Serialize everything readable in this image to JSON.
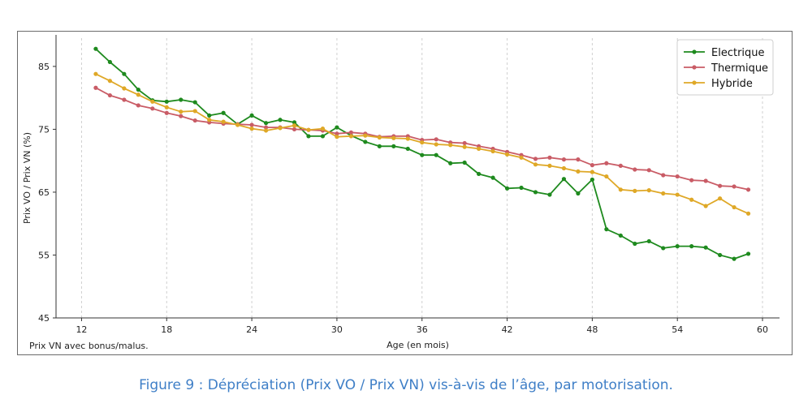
{
  "chart_data": {
    "type": "line",
    "title": "",
    "xlabel": "Age (en mois)",
    "ylabel": "Prix VO / Prix VN (%)",
    "xlim": [
      10.2,
      61.2
    ],
    "ylim": [
      45,
      89.5
    ],
    "xticks": [
      12,
      18,
      24,
      30,
      36,
      42,
      48,
      54,
      60
    ],
    "yticks": [
      45,
      55,
      65,
      75,
      85
    ],
    "grid": "vertical dashed",
    "legend_position": "top-right",
    "x": [
      13,
      14,
      15,
      16,
      17,
      18,
      19,
      20,
      21,
      22,
      23,
      24,
      25,
      26,
      27,
      28,
      29,
      30,
      31,
      32,
      33,
      34,
      35,
      36,
      37,
      38,
      39,
      40,
      41,
      42,
      43,
      44,
      45,
      46,
      47,
      48,
      49,
      50,
      51,
      52,
      53,
      54,
      55,
      56,
      57,
      58,
      59
    ],
    "series": [
      {
        "name": "Electrique",
        "color": "#1e8a1e",
        "values": [
          87.8,
          85.7,
          83.8,
          81.3,
          79.6,
          79.4,
          79.7,
          79.3,
          77.2,
          77.6,
          75.8,
          77.2,
          76.0,
          76.5,
          76.1,
          73.9,
          73.9,
          75.3,
          74.0,
          73.0,
          72.3,
          72.3,
          71.9,
          70.9,
          70.9,
          69.6,
          69.7,
          67.9,
          67.3,
          65.6,
          65.7,
          65.0,
          64.6,
          67.1,
          64.8,
          67.0,
          59.1,
          58.1,
          56.8,
          57.2,
          56.1,
          56.4,
          56.4,
          56.2,
          55.0,
          54.4,
          55.2
        ]
      },
      {
        "name": "Thermique",
        "color": "#c95c66",
        "values": [
          81.6,
          80.4,
          79.7,
          78.8,
          78.3,
          77.6,
          77.1,
          76.4,
          76.1,
          75.9,
          75.8,
          75.7,
          75.3,
          75.3,
          75.0,
          74.9,
          74.8,
          74.3,
          74.5,
          74.3,
          73.8,
          73.9,
          73.9,
          73.3,
          73.4,
          72.9,
          72.8,
          72.3,
          71.9,
          71.4,
          70.9,
          70.3,
          70.5,
          70.2,
          70.2,
          69.3,
          69.6,
          69.2,
          68.6,
          68.5,
          67.7,
          67.5,
          66.9,
          66.8,
          66.0,
          65.9,
          65.4
        ]
      },
      {
        "name": "Hybride",
        "color": "#dfa827",
        "values": [
          83.8,
          82.7,
          81.5,
          80.5,
          79.4,
          78.5,
          77.8,
          77.9,
          76.5,
          76.2,
          75.7,
          75.1,
          74.8,
          75.2,
          75.6,
          74.9,
          75.1,
          73.8,
          73.9,
          74.0,
          73.7,
          73.6,
          73.5,
          72.9,
          72.6,
          72.5,
          72.2,
          71.9,
          71.5,
          71.0,
          70.5,
          69.4,
          69.2,
          68.8,
          68.3,
          68.2,
          67.5,
          65.4,
          65.2,
          65.3,
          64.8,
          64.6,
          63.8,
          62.8,
          64.0,
          62.6,
          61.6
        ]
      }
    ]
  },
  "note": "Prix VN avec bonus/malus.",
  "caption": "Figure 9 : Dépréciation (Prix VO / Prix VN) vis-à-vis de l’âge, par motorisation."
}
